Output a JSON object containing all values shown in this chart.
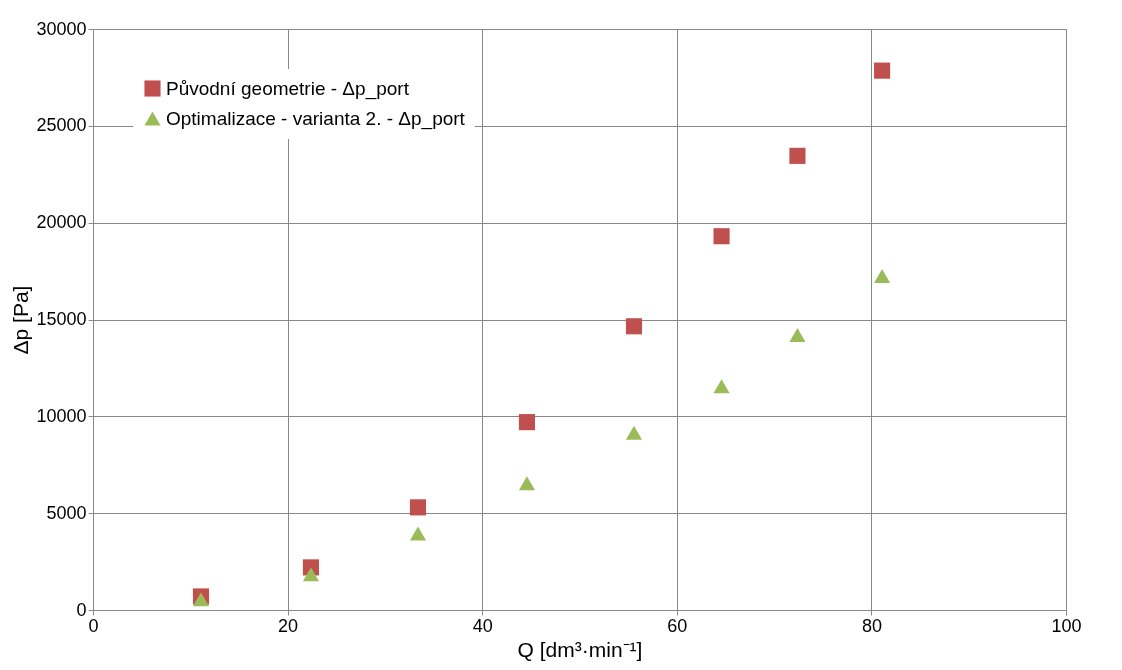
{
  "chart_data": {
    "type": "scatter",
    "xlabel": "Q [dm³·min⁻¹]",
    "ylabel": "Δp [Pa]",
    "x": [
      11.1,
      22.4,
      33.4,
      44.6,
      55.6,
      64.6,
      72.4,
      81.1
    ],
    "series": [
      {
        "name": "Původní geometrie - Δp_port",
        "color": "#c0504d",
        "marker": "square",
        "values": [
          700,
          2200,
          5300,
          9700,
          14650,
          19300,
          23450,
          27850
        ]
      },
      {
        "name": "Optimalizace - varianta 2. - Δp_port",
        "color": "#9bbb59",
        "marker": "triangle",
        "values": [
          550,
          1850,
          3950,
          6550,
          9150,
          11550,
          14200,
          17250
        ]
      }
    ],
    "xlim": [
      0,
      100
    ],
    "xticks": [
      0,
      20,
      40,
      60,
      80,
      100
    ],
    "ylim": [
      0,
      30000
    ],
    "yticks": [
      0,
      5000,
      10000,
      15000,
      20000,
      25000,
      30000
    ],
    "grid": true,
    "legend": "top left"
  }
}
